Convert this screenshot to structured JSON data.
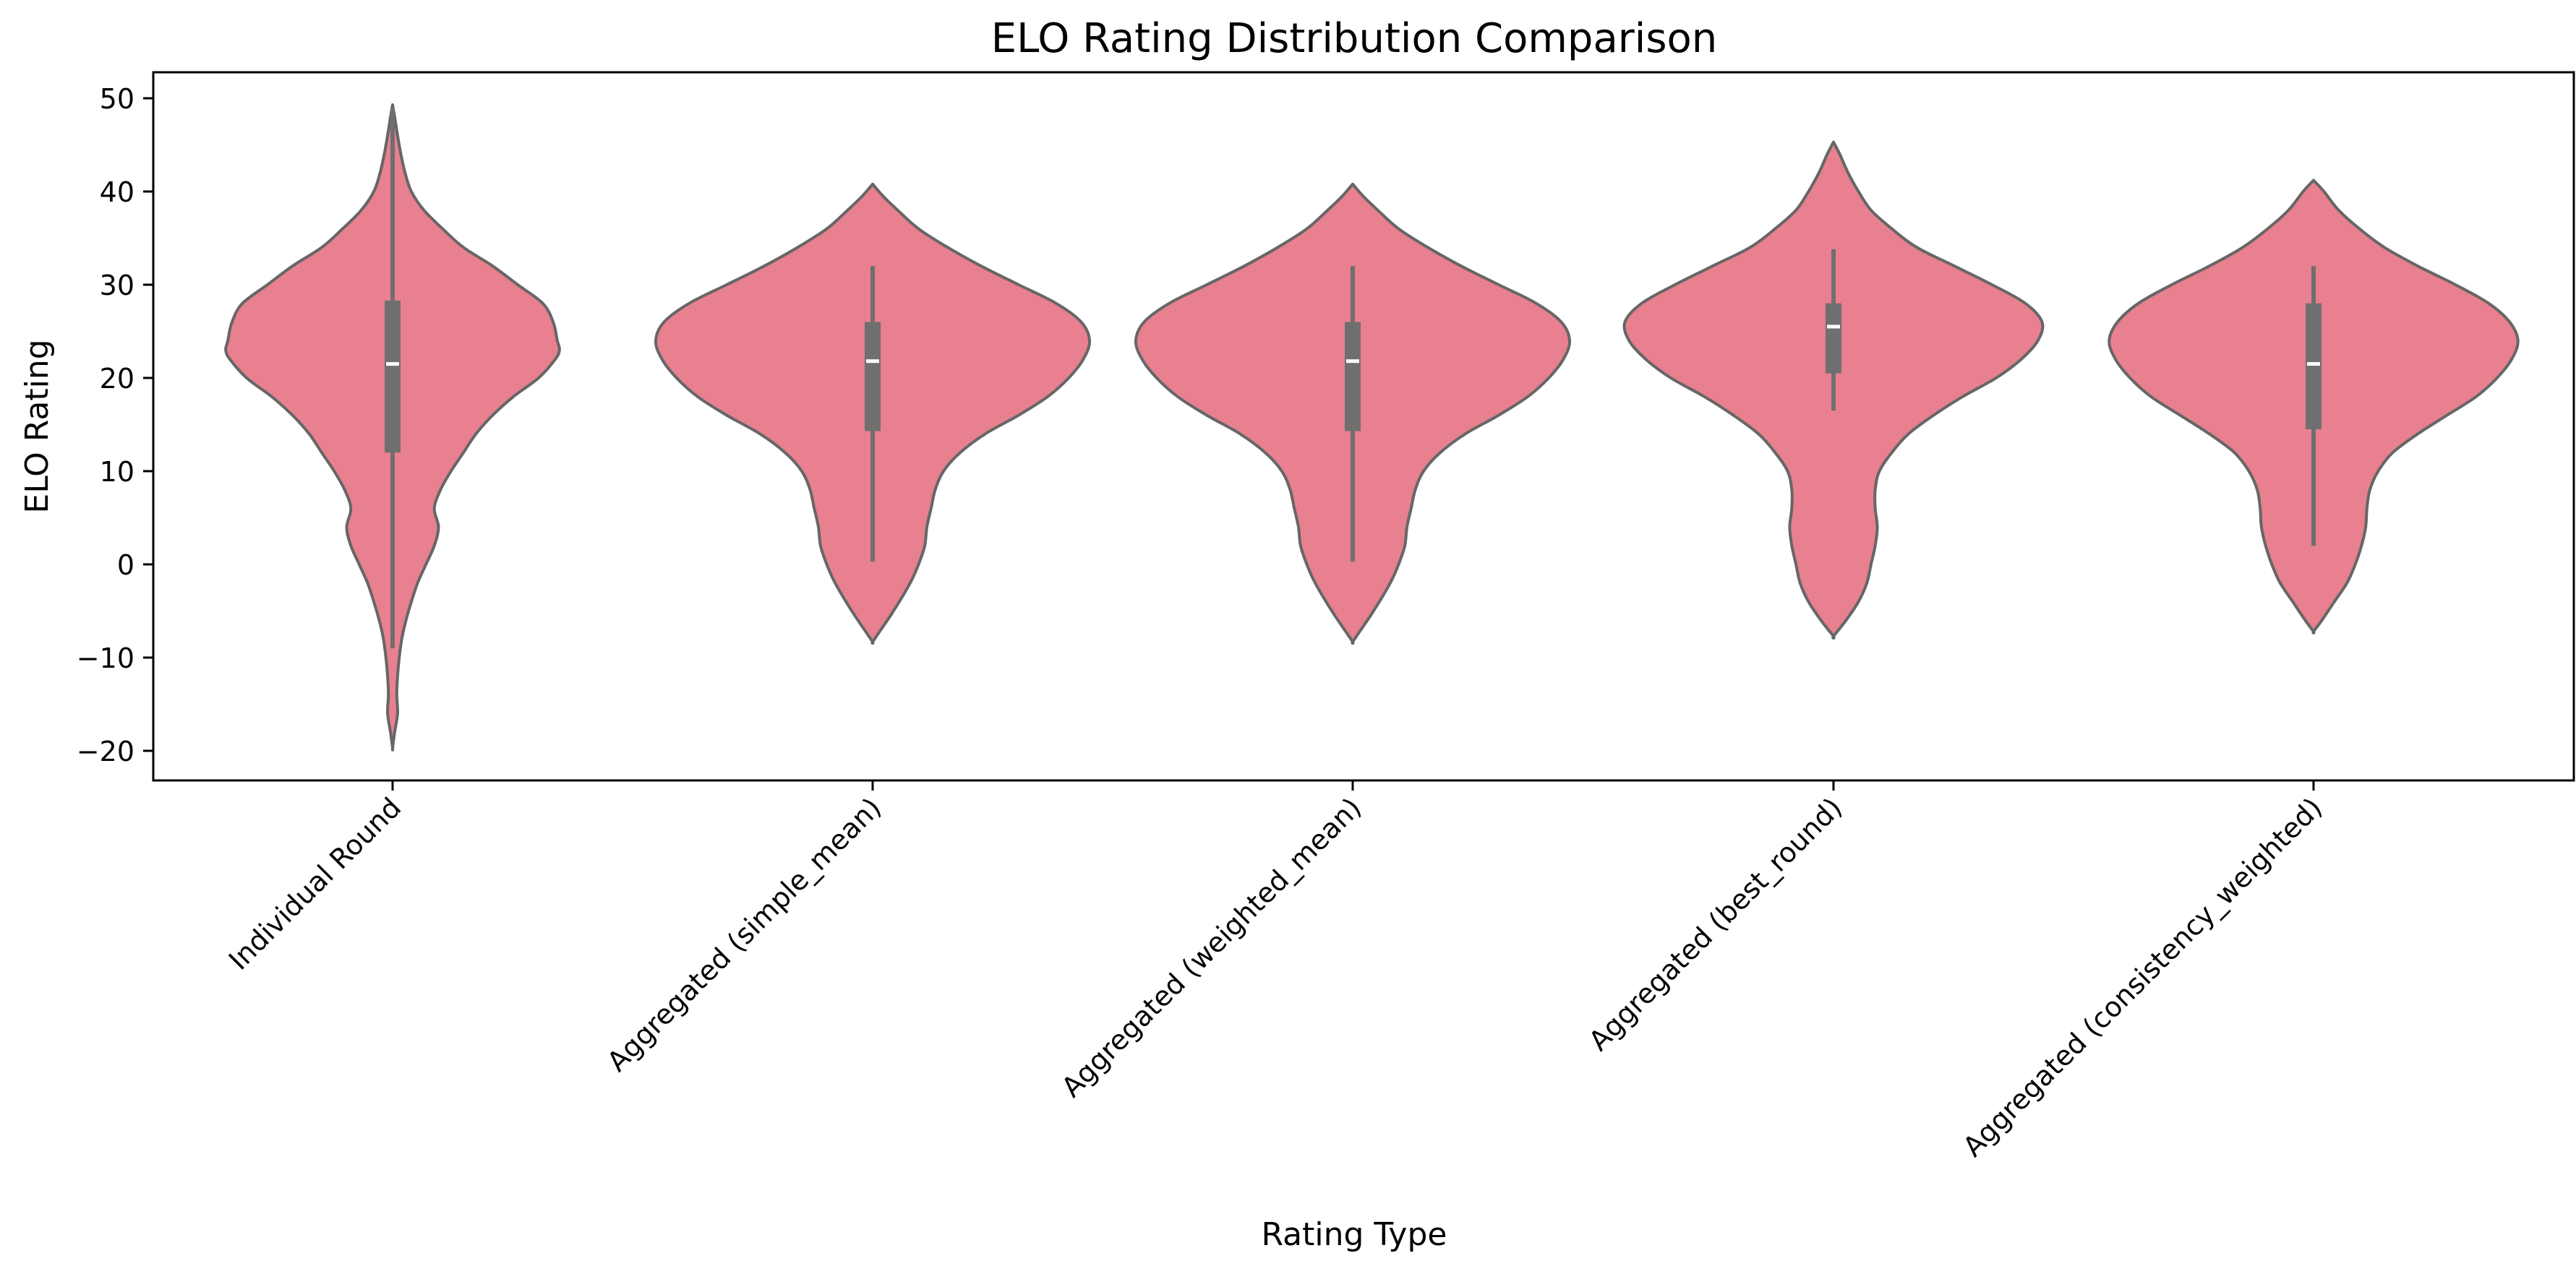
{
  "chart_data": {
    "type": "violin",
    "title": "ELO Rating Distribution Comparison",
    "xlabel": "Rating Type",
    "ylabel": "ELO Rating",
    "ylim": [
      -23.3,
      52.7
    ],
    "yticks": [
      -20,
      -10,
      0,
      10,
      20,
      30,
      40,
      50
    ],
    "grid": false,
    "fill_color": "#e8808f",
    "edge_color": "#666666",
    "categories": [
      "Individual Round",
      "Aggregated (simple_mean)",
      "Aggregated (weighted_mean)",
      "Aggregated (best_round)",
      "Aggregated (consistency_weighted)"
    ],
    "distributions": [
      {
        "category": "Individual Round",
        "min": -19.7,
        "whisker_low": -9,
        "q1": 12,
        "median": 21.5,
        "q3": 28.3,
        "whisker_high": 49,
        "max": 49.3,
        "density": [
          [
            -19.7,
            0.0
          ],
          [
            -18,
            0.005
          ],
          [
            -16,
            0.012
          ],
          [
            -14,
            0.01
          ],
          [
            -12,
            0.012
          ],
          [
            -10,
            0.016
          ],
          [
            -8,
            0.022
          ],
          [
            -6,
            0.032
          ],
          [
            -4,
            0.045
          ],
          [
            -2,
            0.06
          ],
          [
            0,
            0.08
          ],
          [
            2,
            0.1
          ],
          [
            4,
            0.11
          ],
          [
            6,
            0.1
          ],
          [
            8,
            0.115
          ],
          [
            10,
            0.14
          ],
          [
            12,
            0.17
          ],
          [
            14,
            0.2
          ],
          [
            16,
            0.24
          ],
          [
            18,
            0.29
          ],
          [
            20,
            0.35
          ],
          [
            22,
            0.39
          ],
          [
            23,
            0.4
          ],
          [
            24,
            0.395
          ],
          [
            26,
            0.385
          ],
          [
            28,
            0.36
          ],
          [
            30,
            0.3
          ],
          [
            32,
            0.24
          ],
          [
            34,
            0.17
          ],
          [
            36,
            0.12
          ],
          [
            38,
            0.075
          ],
          [
            40,
            0.045
          ],
          [
            42,
            0.03
          ],
          [
            44,
            0.02
          ],
          [
            46,
            0.012
          ],
          [
            48,
            0.005
          ],
          [
            49.3,
            0.0
          ]
        ]
      },
      {
        "category": "Aggregated (simple_mean)",
        "min": -8.3,
        "whisker_low": 0.3,
        "q1": 14.3,
        "median": 21.8,
        "q3": 26,
        "whisker_high": 32,
        "max": 40.8,
        "density": [
          [
            -8.3,
            0.0
          ],
          [
            -7,
            0.02
          ],
          [
            -5,
            0.05
          ],
          [
            -2,
            0.09
          ],
          [
            0,
            0.11
          ],
          [
            2,
            0.125
          ],
          [
            4,
            0.13
          ],
          [
            6,
            0.14
          ],
          [
            8,
            0.15
          ],
          [
            10,
            0.17
          ],
          [
            12,
            0.21
          ],
          [
            14,
            0.27
          ],
          [
            16,
            0.35
          ],
          [
            18,
            0.42
          ],
          [
            20,
            0.47
          ],
          [
            22,
            0.505
          ],
          [
            24,
            0.52
          ],
          [
            26,
            0.5
          ],
          [
            28,
            0.44
          ],
          [
            30,
            0.35
          ],
          [
            32,
            0.26
          ],
          [
            34,
            0.18
          ],
          [
            36,
            0.11
          ],
          [
            38,
            0.06
          ],
          [
            39.5,
            0.025
          ],
          [
            40.8,
            0.0
          ]
        ]
      },
      {
        "category": "Aggregated (weighted_mean)",
        "min": -8.3,
        "whisker_low": 0.3,
        "q1": 14.3,
        "median": 21.8,
        "q3": 26,
        "whisker_high": 32,
        "max": 40.8,
        "density": [
          [
            -8.3,
            0.0
          ],
          [
            -7,
            0.02
          ],
          [
            -5,
            0.05
          ],
          [
            -2,
            0.09
          ],
          [
            0,
            0.11
          ],
          [
            2,
            0.125
          ],
          [
            4,
            0.13
          ],
          [
            6,
            0.14
          ],
          [
            8,
            0.15
          ],
          [
            10,
            0.17
          ],
          [
            12,
            0.21
          ],
          [
            14,
            0.27
          ],
          [
            16,
            0.35
          ],
          [
            18,
            0.42
          ],
          [
            20,
            0.47
          ],
          [
            22,
            0.505
          ],
          [
            24,
            0.52
          ],
          [
            26,
            0.5
          ],
          [
            28,
            0.44
          ],
          [
            30,
            0.35
          ],
          [
            32,
            0.26
          ],
          [
            34,
            0.18
          ],
          [
            36,
            0.11
          ],
          [
            38,
            0.06
          ],
          [
            39.5,
            0.025
          ],
          [
            40.8,
            0.0
          ]
        ]
      },
      {
        "category": "Aggregated (best_round)",
        "min": -7.7,
        "whisker_low": 16.5,
        "q1": 20.5,
        "median": 25.5,
        "q3": 28,
        "whisker_high": 33.8,
        "max": 45.3,
        "density": [
          [
            -7.7,
            0.0
          ],
          [
            -6,
            0.03
          ],
          [
            -4,
            0.06
          ],
          [
            -2,
            0.08
          ],
          [
            0,
            0.09
          ],
          [
            2,
            0.1
          ],
          [
            4,
            0.105
          ],
          [
            6,
            0.1
          ],
          [
            8,
            0.1
          ],
          [
            10,
            0.11
          ],
          [
            12,
            0.14
          ],
          [
            14,
            0.18
          ],
          [
            16,
            0.24
          ],
          [
            18,
            0.31
          ],
          [
            20,
            0.39
          ],
          [
            22,
            0.45
          ],
          [
            24,
            0.49
          ],
          [
            26,
            0.5
          ],
          [
            28,
            0.46
          ],
          [
            30,
            0.38
          ],
          [
            32,
            0.29
          ],
          [
            34,
            0.2
          ],
          [
            36,
            0.14
          ],
          [
            38,
            0.09
          ],
          [
            40,
            0.06
          ],
          [
            42,
            0.035
          ],
          [
            44,
            0.015
          ],
          [
            45.3,
            0.0
          ]
        ]
      },
      {
        "category": "Aggregated (consistency_weighted)",
        "min": -7.2,
        "whisker_low": 2,
        "q1": 14.5,
        "median": 21.5,
        "q3": 28,
        "whisker_high": 32,
        "max": 41.2,
        "density": [
          [
            -7.2,
            0.0
          ],
          [
            -6,
            0.02
          ],
          [
            -4,
            0.05
          ],
          [
            -2,
            0.08
          ],
          [
            0,
            0.1
          ],
          [
            2,
            0.115
          ],
          [
            4,
            0.125
          ],
          [
            6,
            0.128
          ],
          [
            8,
            0.135
          ],
          [
            10,
            0.155
          ],
          [
            12,
            0.19
          ],
          [
            14,
            0.25
          ],
          [
            16,
            0.32
          ],
          [
            18,
            0.39
          ],
          [
            20,
            0.44
          ],
          [
            22,
            0.475
          ],
          [
            24,
            0.49
          ],
          [
            26,
            0.47
          ],
          [
            28,
            0.42
          ],
          [
            30,
            0.34
          ],
          [
            32,
            0.25
          ],
          [
            34,
            0.17
          ],
          [
            36,
            0.11
          ],
          [
            38,
            0.06
          ],
          [
            40,
            0.025
          ],
          [
            41.2,
            0.0
          ]
        ]
      }
    ]
  }
}
